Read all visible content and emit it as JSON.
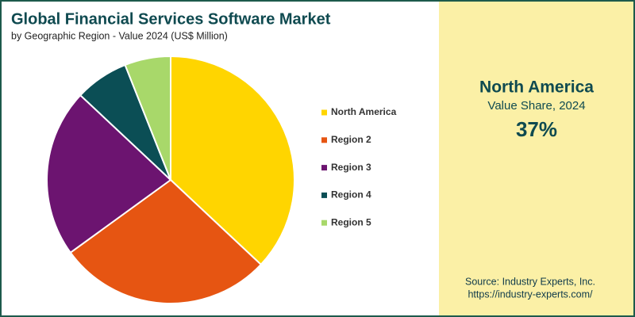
{
  "chart_data": {
    "type": "pie",
    "title": "Global Financial Services Software Market",
    "subtitle": "by Geographic Region - Value 2024 (US$ Million)",
    "categories": [
      "North America",
      "Region 2",
      "Region 3",
      "Region 4",
      "Region 5"
    ],
    "values": [
      37,
      28,
      22,
      7,
      6
    ],
    "colors": [
      "#ffd500",
      "#e65512",
      "#6c1470",
      "#0b4e55",
      "#a8d86a"
    ],
    "legend": "right"
  },
  "panel": {
    "title": "North America",
    "subtitle": "Value Share, 2024",
    "value_label": "37%"
  },
  "source": {
    "line1": "Source: Industry Experts, Inc.",
    "line2": "https://industry-experts.com/"
  }
}
